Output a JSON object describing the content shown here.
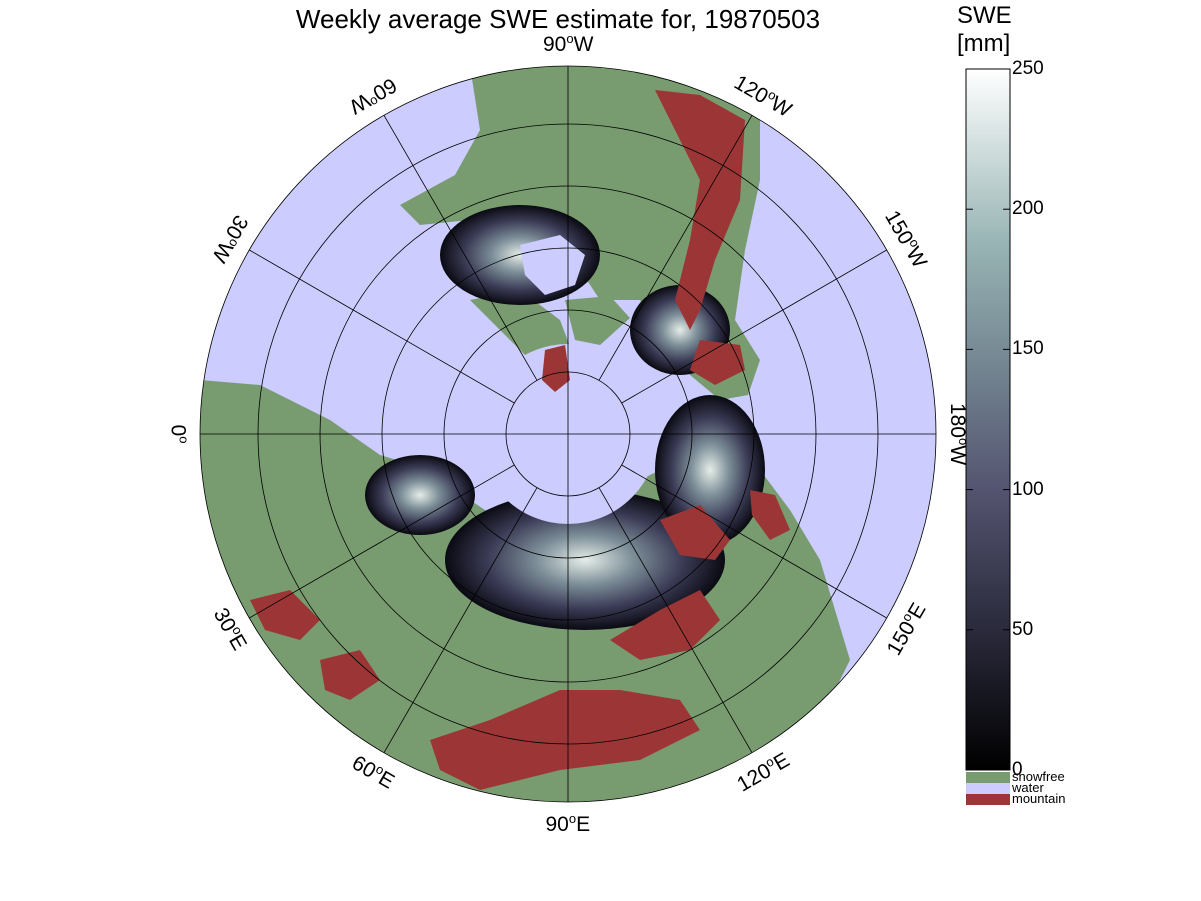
{
  "title": "Weekly average SWE estimate for, 19870503",
  "colors": {
    "snowfree": "#789c70",
    "water": "#ccccff",
    "mountain": "#9c3636",
    "snow_low": "#000000",
    "snow_mid": "#5a5a7a",
    "snow_high": "#ffffff"
  },
  "longitude_labels": [
    {
      "deg": "90",
      "dir": "W"
    },
    {
      "deg": "120",
      "dir": "W"
    },
    {
      "deg": "150",
      "dir": "W"
    },
    {
      "deg": "180",
      "dir": "W"
    },
    {
      "deg": "150",
      "dir": "E"
    },
    {
      "deg": "120",
      "dir": "E"
    },
    {
      "deg": "90",
      "dir": "E"
    },
    {
      "deg": "60",
      "dir": "E"
    },
    {
      "deg": "30",
      "dir": "E"
    },
    {
      "deg": "0",
      "dir": ""
    },
    {
      "deg": "30",
      "dir": "W"
    },
    {
      "deg": "60",
      "dir": "W"
    }
  ],
  "colorbar": {
    "title_line1": "SWE",
    "title_line2": "[mm]",
    "min": 0,
    "max": 250,
    "ticks": [
      "250",
      "200",
      "150",
      "100",
      "50",
      "0"
    ]
  },
  "legend": [
    {
      "label": "snowfree",
      "color_key": "snowfree"
    },
    {
      "label": "water",
      "color_key": "water"
    },
    {
      "label": "mountain",
      "color_key": "mountain"
    }
  ]
}
